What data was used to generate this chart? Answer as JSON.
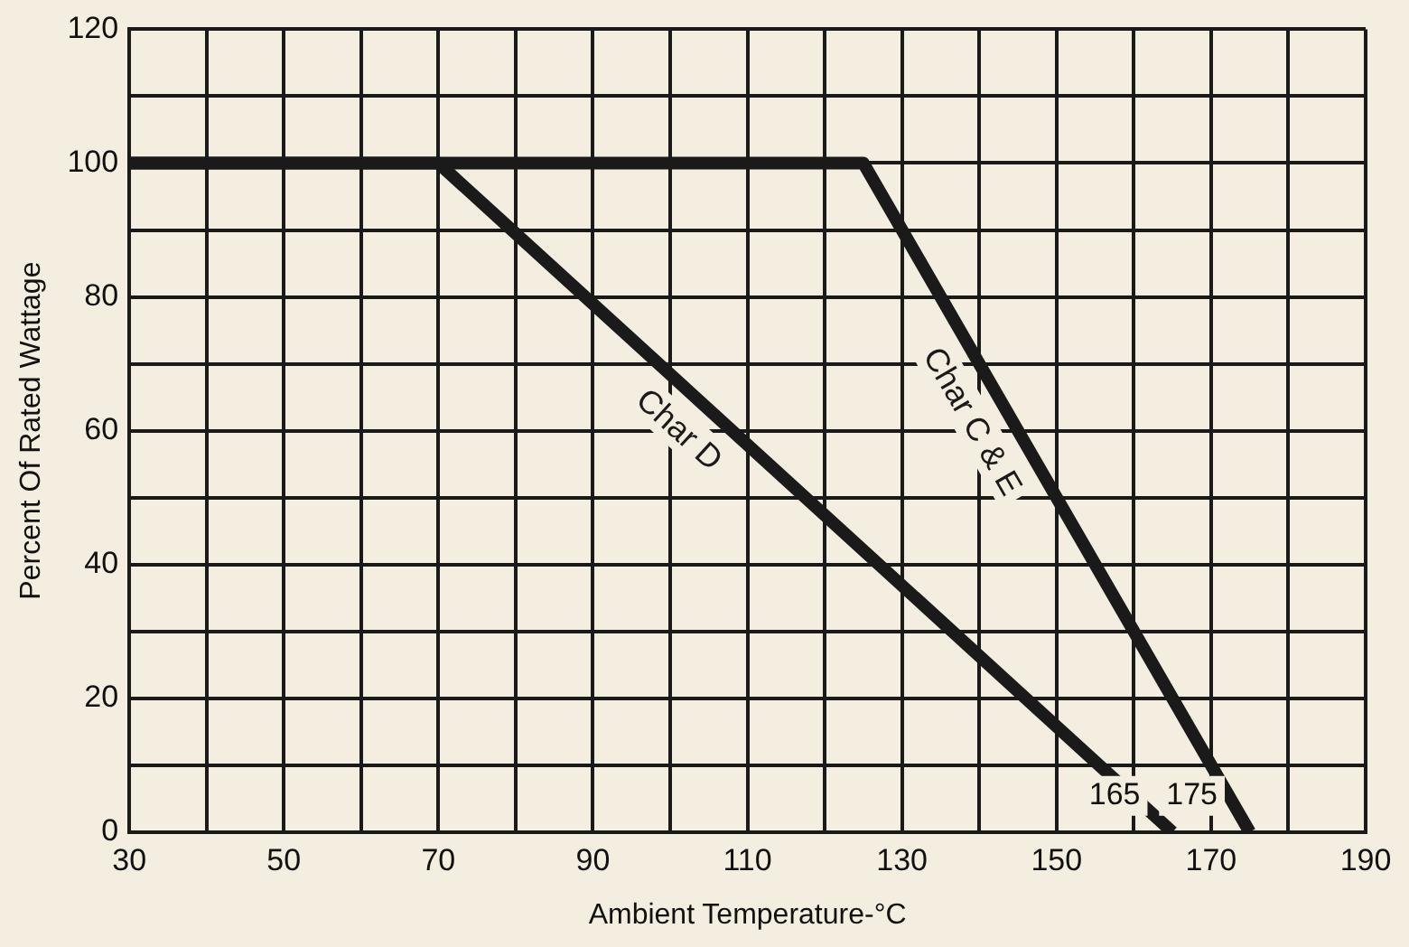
{
  "chart_data": {
    "type": "line",
    "xlabel": "Ambient Temperature-°C",
    "ylabel": "Percent Of Rated Wattage",
    "series": [
      {
        "name": "Char D",
        "color": "#1a1a1a",
        "x": [
          30,
          70,
          165
        ],
        "values": [
          100,
          100,
          0
        ]
      },
      {
        "name": "Char C & E",
        "color": "#1a1a1a",
        "x": [
          30,
          125,
          175
        ],
        "values": [
          100,
          100,
          0
        ]
      }
    ],
    "xlim": [
      30,
      190
    ],
    "xticks": [
      30,
      {
        "value": 40,
        "label": null
      },
      50,
      {
        "value": 60,
        "label": null
      },
      70,
      {
        "value": 80,
        "label": null
      },
      90,
      {
        "value": 100,
        "label": null
      },
      110,
      {
        "value": 120,
        "label": null
      },
      130,
      {
        "value": 140,
        "label": null
      },
      150,
      {
        "value": 160,
        "label": null
      },
      170,
      {
        "value": 180,
        "label": null
      },
      190
    ],
    "ylim": [
      0,
      120
    ],
    "yticks": [
      0,
      {
        "value": 10,
        "label": null
      },
      20,
      {
        "value": 30,
        "label": null
      },
      40,
      {
        "value": 50,
        "label": null
      },
      60,
      {
        "value": 70,
        "label": null
      },
      80,
      {
        "value": 90,
        "label": null
      },
      100,
      {
        "value": 110,
        "label": null
      },
      120
    ],
    "annotations": [
      "165",
      "175"
    ],
    "grid": true,
    "legend": false,
    "marker": "none",
    "line_style": "solid"
  }
}
